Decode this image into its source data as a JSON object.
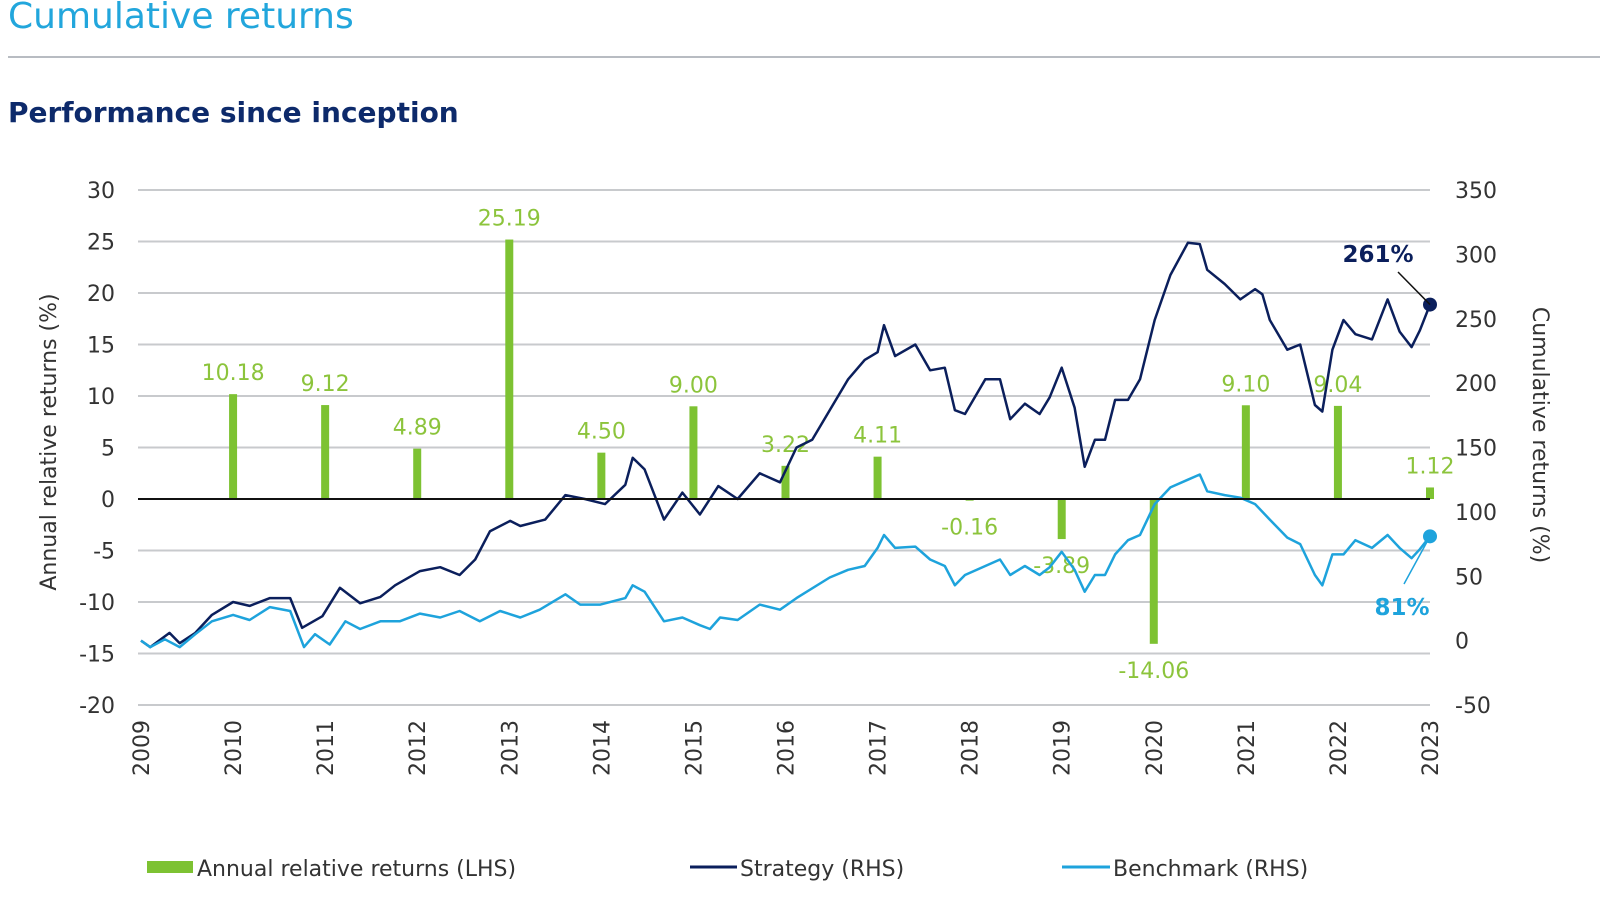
{
  "page": {
    "title": "Cumulative returns",
    "subtitle": "Performance since inception"
  },
  "colors": {
    "title": "#22a6dc",
    "heading": "#0d2a6b",
    "bars": "#7dc232",
    "bar_labels": "#8cc43c",
    "strategy": "#0b1f5c",
    "benchmark": "#1ea3dc",
    "grid": "#c8cacd"
  },
  "chart_data": {
    "type": "bar+line",
    "grid": true,
    "legend_placement": "bottom",
    "left_axis": {
      "label": "Annual relative returns (%)",
      "range": [
        -20,
        30
      ],
      "ticks": [
        30,
        25,
        20,
        15,
        10,
        5,
        0,
        -5,
        -10,
        -15,
        -20
      ]
    },
    "right_axis": {
      "label": "Cumulative returns (%)",
      "range": [
        -50,
        350
      ],
      "ticks": [
        350,
        300,
        250,
        200,
        150,
        100,
        50,
        0,
        -50
      ]
    },
    "x_axis": {
      "range": [
        2009,
        2023
      ],
      "ticks": [
        "2009",
        "2010",
        "2011",
        "2012",
        "2013",
        "2014",
        "2015",
        "2016",
        "2017",
        "2018",
        "2019",
        "2020",
        "2021",
        "2022",
        "2023"
      ]
    },
    "bars": {
      "name": "Annual relative returns (LHS)",
      "years": [
        2010,
        2011,
        2012,
        2013,
        2014,
        2015,
        2016,
        2017,
        2018,
        2019,
        2020,
        2021,
        2022,
        2023
      ],
      "values": [
        10.18,
        9.12,
        4.89,
        25.19,
        4.5,
        9.0,
        3.22,
        4.11,
        -0.16,
        -3.89,
        -14.06,
        9.1,
        9.04,
        1.12
      ],
      "labels": [
        "10.18",
        "9.12",
        "4.89",
        "25.19",
        "4.50",
        "9.00",
        "3.22",
        "4.11",
        "-0.16",
        "-3.89",
        "-14.06",
        "9.10",
        "9.04",
        "1.12"
      ]
    },
    "series": [
      {
        "name": "Strategy (RHS)",
        "end_label": "261%",
        "x": [
          2009.0,
          2009.1,
          2009.31,
          2009.42,
          2009.59,
          2009.77,
          2010.0,
          2010.18,
          2010.4,
          2010.62,
          2010.75,
          2010.97,
          2011.16,
          2011.38,
          2011.6,
          2011.76,
          2012.03,
          2012.25,
          2012.46,
          2012.63,
          2012.79,
          2013.01,
          2013.12,
          2013.39,
          2013.61,
          2013.82,
          2014.04,
          2014.26,
          2014.34,
          2014.47,
          2014.68,
          2014.88,
          2015.07,
          2015.27,
          2015.48,
          2015.72,
          2015.94,
          2016.12,
          2016.29,
          2016.48,
          2016.68,
          2016.86,
          2017.0,
          2017.07,
          2017.19,
          2017.41,
          2017.57,
          2017.73,
          2017.84,
          2017.95,
          2018.17,
          2018.33,
          2018.44,
          2018.6,
          2018.76,
          2018.87,
          2019.0,
          2019.14,
          2019.25,
          2019.36,
          2019.47,
          2019.58,
          2019.72,
          2019.85,
          2020.01,
          2020.18,
          2020.37,
          2020.5,
          2020.58,
          2020.77,
          2020.94,
          2021.1,
          2021.18,
          2021.26,
          2021.45,
          2021.59,
          2021.75,
          2021.83,
          2021.94,
          2022.06,
          2022.19,
          2022.37,
          2022.54,
          2022.67,
          2022.8,
          2022.89,
          2023.0
        ],
        "y": [
          0,
          -5,
          6,
          -2,
          6,
          20,
          30,
          27,
          33,
          33,
          10,
          19,
          41,
          29,
          34,
          43,
          54,
          57,
          51,
          63,
          85,
          93,
          89,
          94,
          113,
          110,
          106,
          121,
          142,
          133,
          94,
          115,
          98,
          120,
          110,
          130,
          123,
          150,
          156,
          179,
          203,
          218,
          224,
          245,
          221,
          230,
          210,
          212,
          179,
          176,
          203,
          203,
          172,
          184,
          176,
          189,
          212,
          181,
          135,
          156,
          156,
          187,
          187,
          203,
          249,
          284,
          309,
          308,
          288,
          277,
          265,
          273,
          269,
          249,
          226,
          230,
          183,
          178,
          226,
          249,
          238,
          234,
          265,
          240,
          228,
          241,
          261
        ]
      },
      {
        "name": "Benchmark (RHS)",
        "end_label": "81%",
        "x": [
          2009.0,
          2009.1,
          2009.26,
          2009.42,
          2009.59,
          2009.77,
          2010.0,
          2010.18,
          2010.4,
          2010.62,
          2010.77,
          2010.89,
          2011.05,
          2011.22,
          2011.38,
          2011.6,
          2011.81,
          2012.03,
          2012.25,
          2012.46,
          2012.68,
          2012.9,
          2013.12,
          2013.33,
          2013.61,
          2013.77,
          2013.99,
          2014.26,
          2014.34,
          2014.47,
          2014.68,
          2014.88,
          2015.07,
          2015.18,
          2015.29,
          2015.48,
          2015.72,
          2015.94,
          2016.12,
          2016.48,
          2016.68,
          2016.86,
          2017.0,
          2017.07,
          2017.19,
          2017.41,
          2017.57,
          2017.73,
          2017.84,
          2017.95,
          2018.17,
          2018.33,
          2018.44,
          2018.6,
          2018.76,
          2018.87,
          2019.0,
          2019.14,
          2019.25,
          2019.36,
          2019.47,
          2019.58,
          2019.72,
          2019.85,
          2020.01,
          2020.18,
          2020.37,
          2020.5,
          2020.58,
          2020.77,
          2020.94,
          2021.1,
          2021.26,
          2021.45,
          2021.59,
          2021.75,
          2021.83,
          2021.94,
          2022.06,
          2022.19,
          2022.37,
          2022.54,
          2022.67,
          2022.8,
          2022.89,
          2023.0
        ],
        "y": [
          0,
          -5,
          1,
          -5,
          5,
          15,
          20,
          16,
          26,
          23,
          -5,
          5,
          -3,
          15,
          9,
          15,
          15,
          21,
          18,
          23,
          15,
          23,
          18,
          24,
          36,
          28,
          28,
          33,
          43,
          38,
          15,
          18,
          12,
          9,
          18,
          16,
          28,
          24,
          33,
          49,
          55,
          58,
          72,
          82,
          72,
          73,
          63,
          58,
          43,
          51,
          58,
          63,
          51,
          58,
          51,
          57,
          69,
          55,
          38,
          51,
          51,
          67,
          78,
          82,
          106,
          119,
          125,
          129,
          116,
          113,
          111,
          106,
          94,
          80,
          75,
          51,
          43,
          67,
          67,
          78,
          72,
          82,
          72,
          64,
          71,
          81
        ]
      }
    ]
  }
}
